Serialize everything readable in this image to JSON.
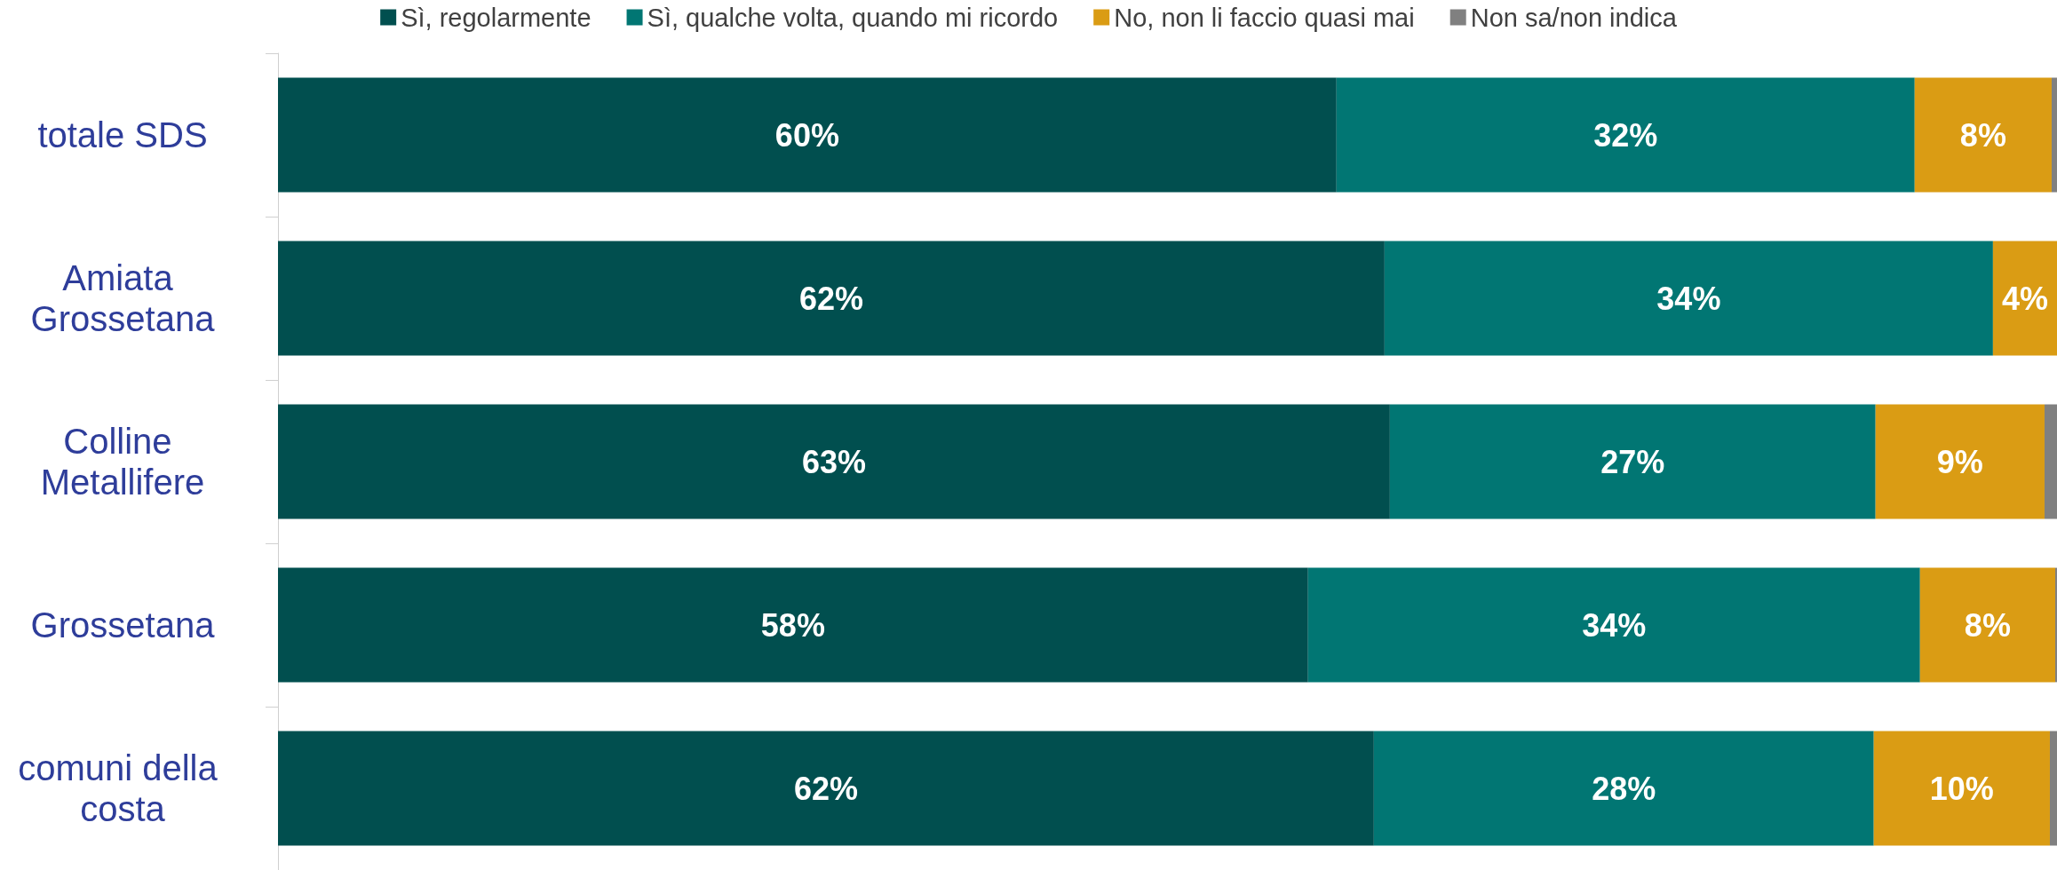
{
  "chart_data": {
    "type": "bar",
    "orientation": "horizontal",
    "stacked": true,
    "categories": [
      "totale SDS",
      "Amiata Grossetana",
      "Colline Metallifere",
      "Grossetana",
      "comuni della costa"
    ],
    "xlim": [
      0,
      100
    ],
    "series": [
      {
        "name": "Sì, regolarmente",
        "color": "#014f4f",
        "values": [
          59.5,
          62.2,
          62.5,
          57.9,
          61.6
        ],
        "value_labels": [
          "60%",
          "62%",
          "63%",
          "58%",
          "62%"
        ]
      },
      {
        "name": "Sì, qualche volta, quando mi ricordo",
        "color": "#017673",
        "values": [
          32.5,
          34.2,
          27.3,
          34.4,
          28.1
        ],
        "value_labels": [
          "32%",
          "34%",
          "27%",
          "34%",
          "28%"
        ]
      },
      {
        "name": "No, non li faccio quasi mai",
        "color": "#da9c14",
        "values": [
          7.7,
          3.6,
          9.5,
          7.6,
          9.9
        ],
        "value_labels": [
          "8%",
          "4%",
          "9%",
          "8%",
          "10%"
        ]
      },
      {
        "name": "Non sa/non indica",
        "color": "#808080",
        "values": [
          0.3,
          0,
          0.7,
          0.1,
          0.4
        ],
        "value_labels": [
          null,
          null,
          null,
          null,
          null
        ]
      }
    ],
    "grid": false,
    "legend": "top"
  }
}
